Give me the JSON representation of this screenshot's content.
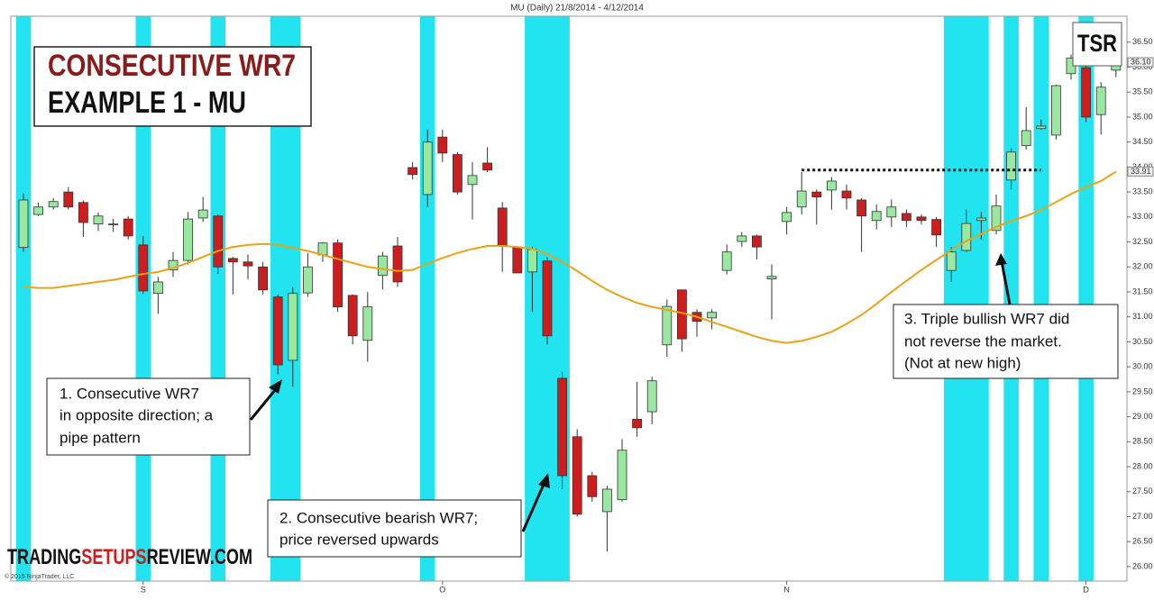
{
  "chart_data": {
    "type": "candlestick",
    "title": "MU (Daily)  21/8/2014 - 4/12/2014",
    "heading": [
      "CONSECUTIVE WR7",
      "EXAMPLE 1 - MU"
    ],
    "logo": "TSR",
    "brand": [
      "TRADING",
      "SETUPS",
      "REVIEW.COM"
    ],
    "copyright": "© 2015 NinjaTrader, LLC",
    "annotations": [
      [
        "1. Consecutive WR7",
        "in opposite direction; a",
        "pipe pattern"
      ],
      [
        "2. Consecutive bearish WR7;",
        "price reversed upwards"
      ],
      [
        "3. Triple bullish  WR7 did",
        "not reverse the market.",
        "(Not at new high)"
      ]
    ],
    "categories": [
      null,
      null,
      null,
      null,
      null,
      null,
      null,
      null,
      "S",
      null,
      null,
      null,
      null,
      null,
      null,
      null,
      null,
      null,
      null,
      null,
      null,
      null,
      null,
      null,
      null,
      null,
      null,
      null,
      "O",
      null,
      null,
      null,
      null,
      null,
      null,
      null,
      null,
      null,
      null,
      null,
      null,
      null,
      null,
      null,
      null,
      null,
      null,
      null,
      null,
      null,
      null,
      "N",
      null,
      null,
      null,
      null,
      null,
      null,
      null,
      null,
      null,
      null,
      null,
      null,
      null,
      null,
      null,
      null,
      null,
      null,
      null,
      "D",
      null,
      null
    ],
    "open": [
      32.39,
      33.05,
      33.2,
      33.5,
      33.29,
      32.86,
      32.85,
      32.96,
      32.44,
      31.47,
      31.94,
      32.13,
      32.98,
      33.02,
      32.17,
      32.1,
      32.0,
      31.4,
      30.13,
      31.48,
      32.24,
      32.48,
      31.43,
      30.53,
      31.83,
      32.42,
      33.99,
      33.45,
      34.6,
      34.25,
      33.65,
      34.08,
      33.18,
      32.4,
      31.9,
      32.12,
      29.77,
      28.6,
      27.82,
      27.1,
      27.34,
      28.95,
      29.1,
      30.44,
      31.54,
      31.09,
      30.98,
      31.93,
      32.51,
      32.62,
      31.76,
      32.91,
      33.2,
      33.5,
      33.54,
      33.52,
      33.34,
      32.93,
      33.0,
      33.07,
      33.0,
      32.95,
      31.93,
      32.33,
      32.93,
      32.73,
      33.74,
      34.43,
      34.77,
      34.64,
      35.87,
      35.99,
      35.05,
      35.94
    ],
    "high": [
      33.47,
      33.29,
      33.38,
      33.6,
      33.33,
      33.09,
      32.96,
      33.02,
      32.62,
      31.8,
      32.3,
      33.1,
      33.4,
      33.05,
      32.2,
      32.25,
      32.1,
      31.45,
      31.6,
      32.28,
      32.5,
      32.55,
      31.45,
      31.5,
      32.3,
      32.6,
      34.1,
      34.75,
      34.75,
      34.3,
      34.1,
      34.4,
      33.3,
      32.42,
      32.4,
      32.2,
      29.9,
      28.75,
      27.9,
      27.62,
      28.55,
      29.7,
      29.8,
      31.35,
      31.55,
      31.15,
      31.15,
      32.45,
      32.7,
      32.65,
      32.05,
      33.2,
      33.9,
      33.55,
      33.8,
      33.65,
      33.38,
      33.25,
      33.35,
      33.15,
      33.05,
      33.0,
      32.4,
      33.15,
      33.1,
      33.45,
      34.38,
      35.2,
      34.95,
      35.65,
      36.25,
      36.2,
      35.7,
      36.2
    ],
    "low": [
      32.3,
      33.02,
      33.15,
      33.15,
      32.6,
      32.72,
      32.7,
      32.55,
      31.46,
      31.06,
      31.8,
      32.05,
      32.9,
      31.86,
      31.45,
      31.75,
      31.45,
      29.85,
      29.6,
      31.4,
      32.1,
      31.1,
      30.45,
      30.1,
      31.55,
      31.6,
      33.75,
      33.2,
      34.1,
      33.45,
      32.95,
      33.9,
      31.9,
      31.88,
      31.1,
      30.45,
      27.55,
      27.0,
      27.3,
      26.3,
      27.3,
      28.6,
      28.85,
      30.2,
      30.3,
      30.6,
      30.75,
      31.85,
      32.4,
      32.15,
      30.95,
      32.65,
      33.05,
      32.85,
      33.15,
      33.15,
      32.3,
      32.75,
      32.8,
      32.8,
      32.85,
      32.4,
      31.7,
      32.3,
      32.55,
      32.65,
      33.55,
      34.35,
      34.75,
      34.55,
      35.75,
      34.9,
      34.65,
      35.8
    ],
    "close": [
      33.34,
      33.2,
      33.31,
      33.2,
      32.89,
      33.02,
      32.86,
      32.62,
      31.52,
      31.7,
      32.13,
      32.96,
      33.14,
      32.0,
      32.1,
      32.02,
      31.54,
      30.04,
      31.47,
      32.0,
      32.48,
      31.2,
      30.62,
      31.2,
      32.22,
      31.7,
      33.85,
      34.5,
      34.28,
      33.5,
      33.83,
      33.94,
      32.42,
      31.88,
      32.35,
      30.62,
      27.82,
      27.05,
      27.4,
      27.55,
      28.33,
      28.78,
      29.72,
      31.21,
      30.56,
      30.91,
      31.09,
      32.3,
      32.62,
      32.4,
      31.81,
      33.09,
      33.52,
      33.4,
      33.72,
      33.38,
      33.02,
      33.11,
      33.2,
      32.93,
      32.93,
      32.64,
      32.3,
      32.87,
      32.98,
      33.22,
      34.3,
      34.73,
      34.82,
      35.63,
      36.18,
      35.0,
      35.6,
      36.1
    ],
    "ma_values": [
      31.6,
      31.58,
      31.58,
      31.62,
      31.66,
      31.7,
      31.74,
      31.8,
      31.86,
      31.9,
      31.98,
      32.08,
      32.2,
      32.32,
      32.4,
      32.44,
      32.46,
      32.44,
      32.38,
      32.32,
      32.24,
      32.16,
      32.08,
      32.0,
      31.96,
      31.92,
      31.94,
      32.06,
      32.18,
      32.28,
      32.36,
      32.42,
      32.42,
      32.4,
      32.36,
      32.26,
      32.1,
      31.92,
      31.72,
      31.54,
      31.4,
      31.28,
      31.2,
      31.14,
      31.08,
      31.0,
      30.9,
      30.8,
      30.7,
      30.6,
      30.52,
      30.48,
      30.52,
      30.6,
      30.7,
      30.86,
      31.04,
      31.26,
      31.5,
      31.72,
      31.94,
      32.14,
      32.34,
      32.52,
      32.66,
      32.8,
      32.92,
      33.02,
      33.14,
      33.3,
      33.46,
      33.6,
      33.72,
      33.91
    ],
    "ma_color": "#e8a317",
    "up_color": "#98e8a0",
    "down_color": "#cc1e1e",
    "highlight_color": "#22e4f0",
    "highlights": [
      [
        0,
        0
      ],
      [
        8,
        8
      ],
      [
        13,
        13
      ],
      [
        17,
        18
      ],
      [
        27,
        27
      ],
      [
        34,
        36
      ],
      [
        62,
        64
      ],
      [
        66,
        66
      ],
      [
        68,
        68
      ],
      [
        71,
        71
      ]
    ],
    "resistance": {
      "value": 33.94,
      "from": 52,
      "to": 68
    },
    "price_markers": [
      {
        "value": 36.1,
        "label": "36.10"
      },
      {
        "value": 33.91,
        "label": "33.91"
      }
    ],
    "ylim": [
      25.71,
      37.02
    ],
    "yticks": [
      {
        "value": 26,
        "label": "26.00"
      },
      {
        "value": 26.5,
        "label": "26.50"
      },
      {
        "value": 27,
        "label": "27.00"
      },
      {
        "value": 27.5,
        "label": "27.50"
      },
      {
        "value": 28,
        "label": "28.00"
      },
      {
        "value": 28.5,
        "label": "28.50"
      },
      {
        "value": 29,
        "label": "29.00"
      },
      {
        "value": 29.5,
        "label": "29.50"
      },
      {
        "value": 30,
        "label": "30.00"
      },
      {
        "value": 30.5,
        "label": "30.50"
      },
      {
        "value": 31,
        "label": "31.00"
      },
      {
        "value": 31.5,
        "label": "31.50"
      },
      {
        "value": 32,
        "label": "32.00"
      },
      {
        "value": 32.5,
        "label": "32.50"
      },
      {
        "value": 33,
        "label": "33.00"
      },
      {
        "value": 33.5,
        "label": "33.50"
      },
      {
        "value": 34,
        "label": "34.00"
      },
      {
        "value": 34.5,
        "label": "34.50"
      },
      {
        "value": 35,
        "label": "35.00"
      },
      {
        "value": 35.5,
        "label": "35.50"
      },
      {
        "value": 36,
        "label": "36.00"
      },
      {
        "value": 36.5,
        "label": "36.50"
      }
    ]
  }
}
